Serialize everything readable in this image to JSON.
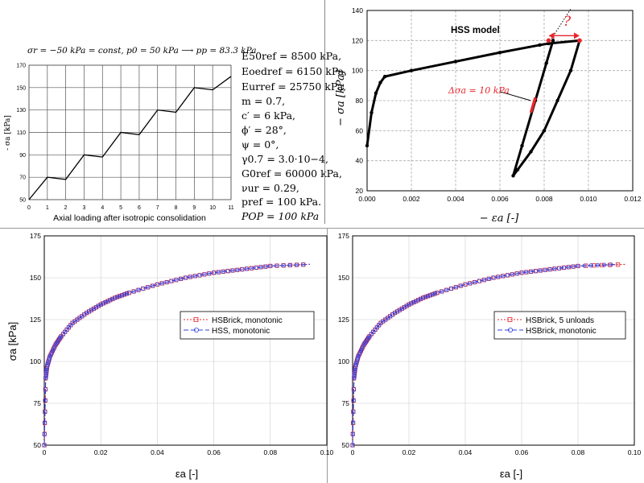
{
  "panel_a": {
    "header": "σr = −50 kPa = const, p0 = 50 kPa ⟶ pp = 83.3 kPa",
    "ylabel": "- σa [kPa]",
    "xlabel": "Axial loading after isotropic consolidation",
    "parameters": [
      "E50ref = 8500 kPa,",
      "Eoedref = 6150 kPa,",
      "Eurref = 25750 kPa,",
      "m = 0.7,",
      "c′ = 6 kPa,",
      "ϕ′ = 28°,",
      "ψ = 0°,",
      "γ0.7 = 3.0·10−4,",
      "G0ref = 60000 kPa,",
      "νur = 0.29,",
      "pref = 100 kPa.",
      "POP = 100 kPa"
    ]
  },
  "panel_b": {
    "annotation_model": "HSS model",
    "annotation_delta": "Δσa = 10 kPa",
    "annotation_question": "?",
    "ylabel": "− σa [kPa]",
    "xlabel": "− εa [-]"
  },
  "panel_c": {
    "ylabel": "σa [kPa]",
    "xlabel": "εa [-]",
    "legend": [
      "HSBrick, monotonic",
      "HSS, monotonic"
    ]
  },
  "panel_d": {
    "xlabel": "εa [-]",
    "legend": [
      "HSBrick, 5 unloads",
      "HSBrick, monotonic"
    ]
  },
  "colors": {
    "red": "#e8262b",
    "blue": "#2f3fe0",
    "purple": "#7b4fd6"
  },
  "chart_data": [
    {
      "type": "line",
      "title": "σr = −50 kPa = const, p0 = 50 kPa ⟶ pp = 83.3 kPa",
      "xlabel": "Axial loading after isotropic consolidation",
      "ylabel": "- σa [kPa]",
      "xlim": [
        0,
        11
      ],
      "ylim": [
        50,
        170
      ],
      "xticks": [
        0,
        1,
        2,
        3,
        4,
        5,
        6,
        7,
        8,
        9,
        10,
        11
      ],
      "yticks": [
        50,
        70,
        90,
        110,
        130,
        150,
        170
      ],
      "grid": true,
      "x": [
        0,
        1,
        2,
        3,
        4,
        5,
        6,
        7,
        8,
        9,
        10,
        11
      ],
      "y": [
        50,
        70,
        68,
        90,
        88,
        110,
        108,
        130,
        128,
        150,
        148,
        160
      ]
    },
    {
      "type": "line",
      "title": "",
      "xlabel": "− εa [-]",
      "ylabel": "− σa [kPa]",
      "xlim": [
        0,
        0.012
      ],
      "ylim": [
        20,
        140
      ],
      "xticks": [
        0.0,
        0.002,
        0.004,
        0.006,
        0.008,
        0.01,
        0.012
      ],
      "yticks": [
        20,
        40,
        60,
        80,
        100,
        120,
        140
      ],
      "grid": true,
      "series": [
        {
          "x": [
            0,
            0.0002,
            0.0004,
            0.0006,
            0.0008,
            0.002,
            0.004,
            0.006,
            0.0078,
            0.0082,
            0.0096,
            0.0092,
            0.0086,
            0.008,
            0.0074,
            0.0068,
            0.0066,
            0.007,
            0.0076,
            0.0081,
            0.0084
          ],
          "y": [
            50,
            72,
            85,
            92,
            96,
            100,
            106,
            112,
            117,
            118,
            120,
            100,
            80,
            60,
            46,
            34,
            30,
            50,
            80,
            105,
            120
          ]
        }
      ],
      "annotations": [
        "HSS model",
        "Δσa = 10 kPa",
        "?"
      ]
    },
    {
      "type": "line",
      "xlabel": "εa [-]",
      "ylabel": "σa [kPa]",
      "xlim": [
        0,
        0.1
      ],
      "ylim": [
        50,
        175
      ],
      "xticks": [
        0,
        0.02,
        0.04,
        0.06,
        0.08,
        0.1
      ],
      "yticks": [
        50,
        75,
        100,
        125,
        150,
        175
      ],
      "grid": true,
      "legend_position": "center-right",
      "series": [
        {
          "name": "HSBrick, monotonic",
          "x": [
            0,
            0.0005,
            0.001,
            0.002,
            0.004,
            0.006,
            0.01,
            0.015,
            0.02,
            0.025,
            0.03,
            0.04,
            0.05,
            0.06,
            0.07,
            0.08,
            0.094
          ],
          "y": [
            50,
            90,
            97,
            103,
            110,
            115,
            123,
            129,
            134,
            138,
            141,
            146,
            150,
            153,
            155,
            157,
            158
          ]
        },
        {
          "name": "HSS, monotonic",
          "x": [
            0,
            0.0005,
            0.001,
            0.002,
            0.004,
            0.006,
            0.01,
            0.015,
            0.02,
            0.025,
            0.03,
            0.04,
            0.05,
            0.06,
            0.07,
            0.08,
            0.094
          ],
          "y": [
            50,
            90,
            97,
            103,
            110,
            115,
            123,
            129,
            134,
            138,
            141,
            146,
            150,
            153,
            155,
            157,
            158
          ]
        }
      ]
    },
    {
      "type": "line",
      "xlabel": "εa [-]",
      "ylabel": "",
      "xlim": [
        0,
        0.1
      ],
      "ylim": [
        50,
        175
      ],
      "xticks": [
        0,
        0.02,
        0.04,
        0.06,
        0.08,
        0.1
      ],
      "yticks": [
        50,
        75,
        100,
        125,
        150,
        175
      ],
      "grid": true,
      "legend_position": "center-right",
      "series": [
        {
          "name": "HSBrick, 5 unloads",
          "x": [
            0,
            0.0005,
            0.001,
            0.002,
            0.004,
            0.006,
            0.01,
            0.015,
            0.02,
            0.025,
            0.03,
            0.04,
            0.05,
            0.06,
            0.07,
            0.08,
            0.097
          ],
          "y": [
            50,
            90,
            97,
            103,
            110,
            115,
            123,
            129,
            134,
            138,
            141,
            146,
            150,
            153,
            155,
            157,
            158
          ]
        },
        {
          "name": "HSBrick, monotonic",
          "x": [
            0,
            0.0005,
            0.001,
            0.002,
            0.004,
            0.006,
            0.01,
            0.015,
            0.02,
            0.025,
            0.03,
            0.04,
            0.05,
            0.06,
            0.07,
            0.08,
            0.094
          ],
          "y": [
            50,
            90,
            97,
            103,
            110,
            115,
            123,
            129,
            134,
            138,
            141,
            146,
            150,
            153,
            155,
            157,
            158
          ]
        }
      ]
    }
  ]
}
